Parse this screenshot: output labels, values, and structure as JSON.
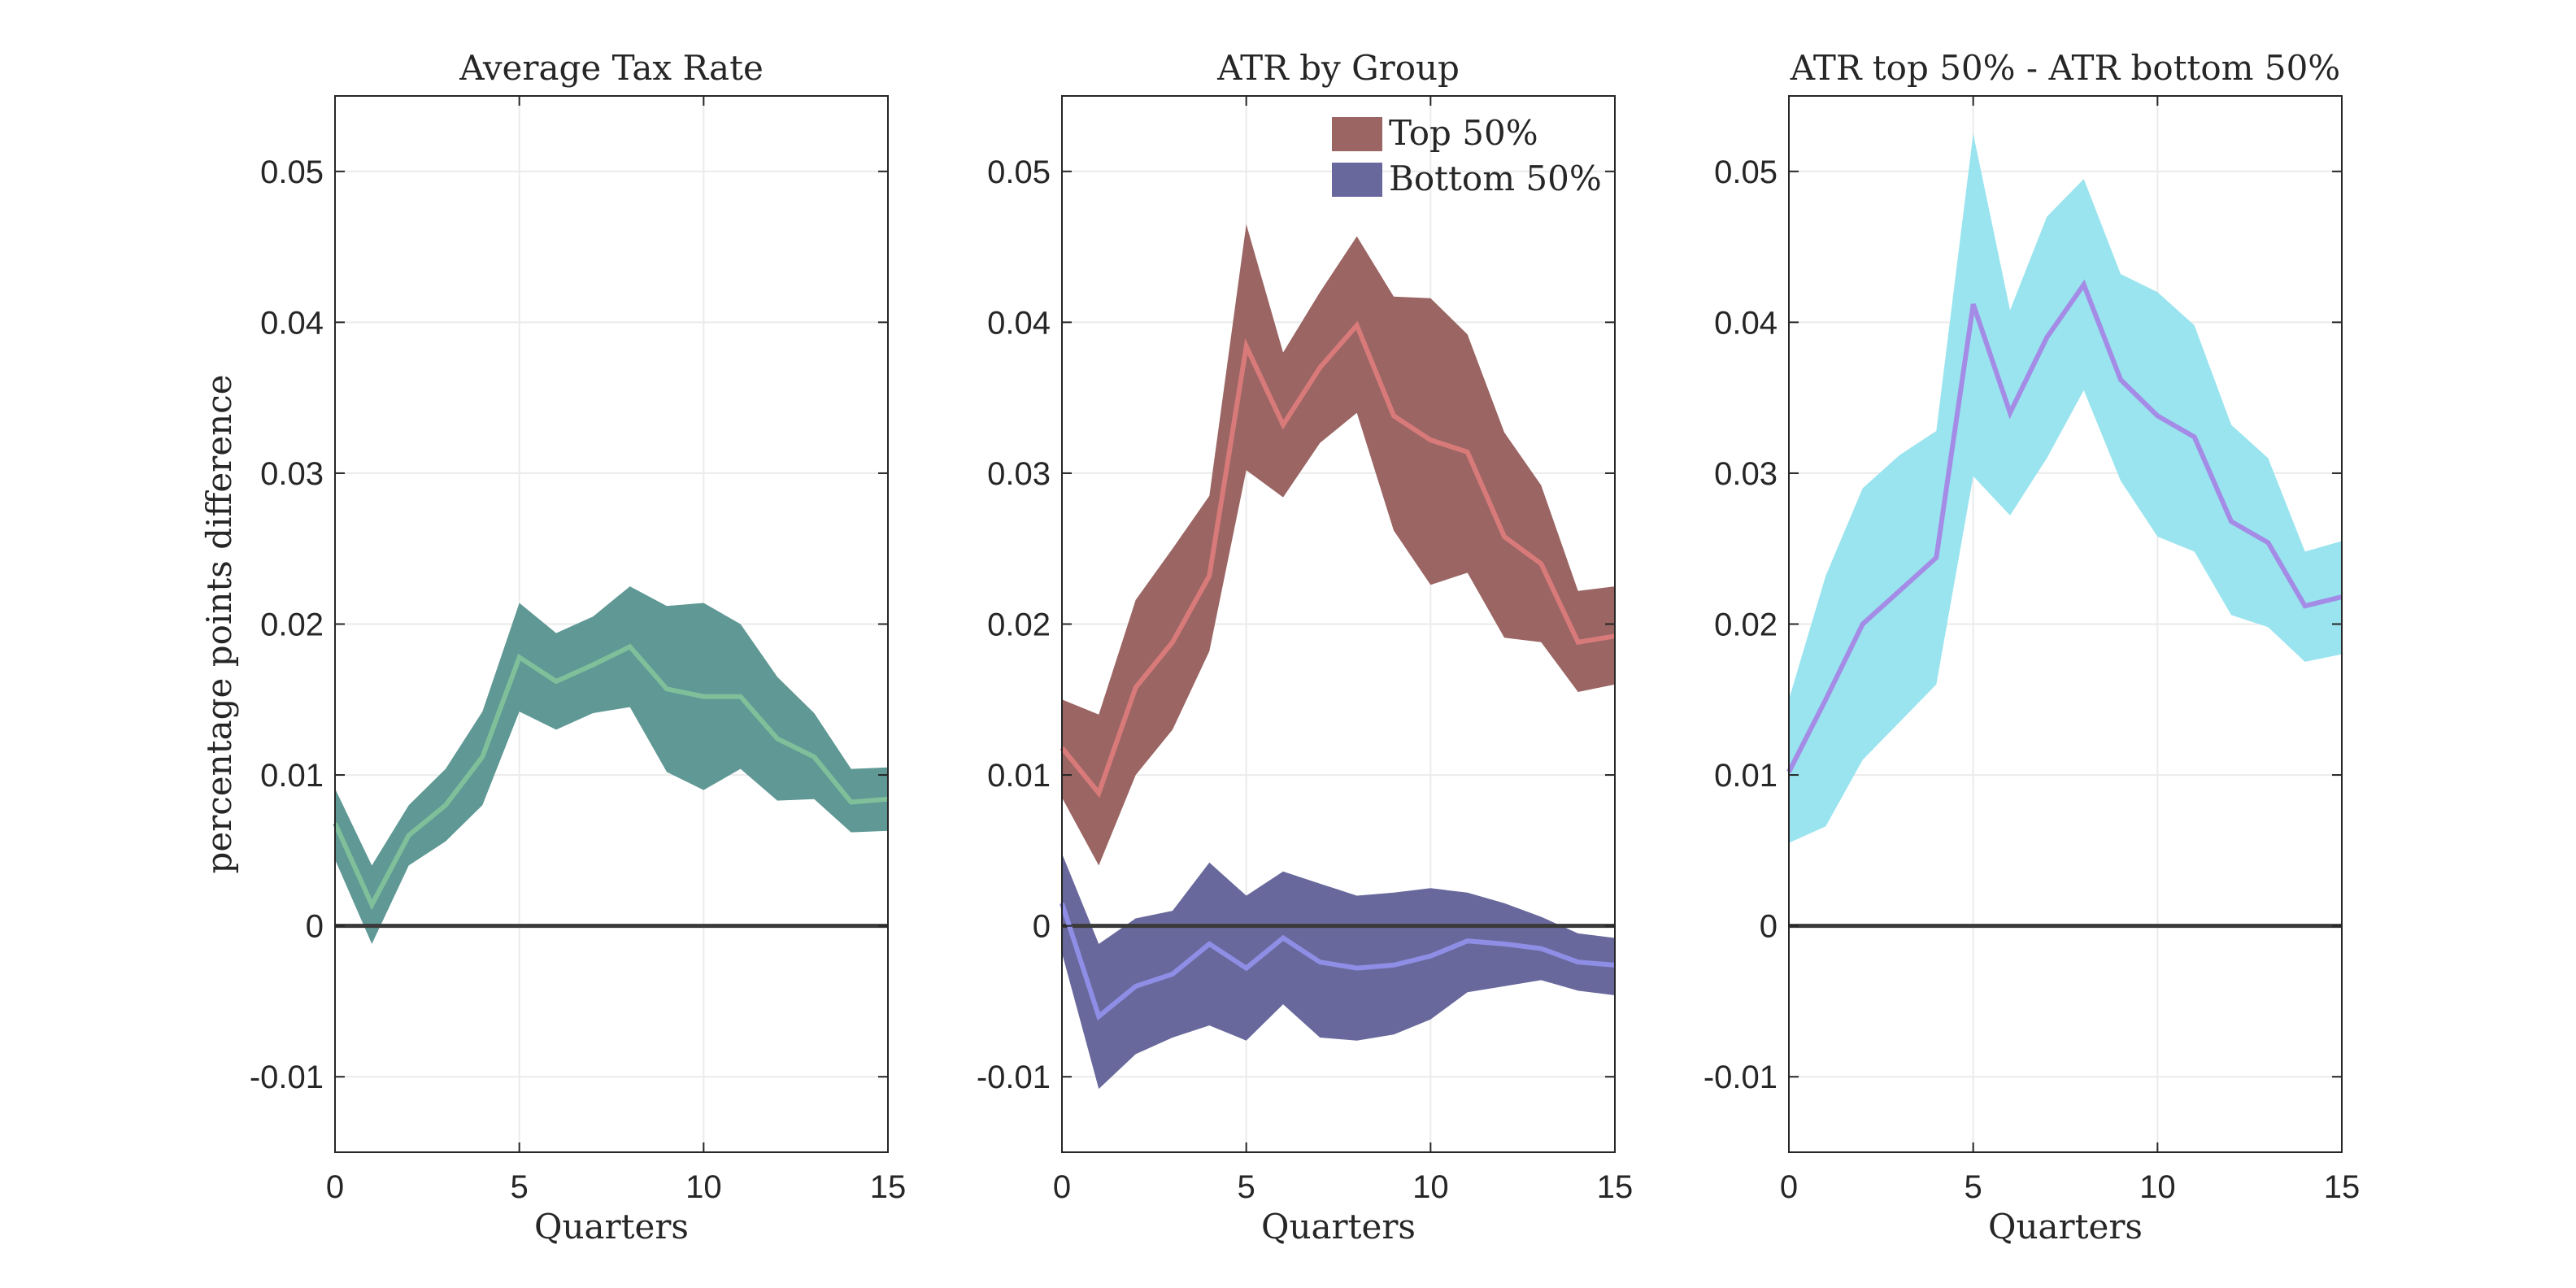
{
  "chart_data": [
    {
      "type": "area",
      "title": "Average Tax Rate",
      "xlabel": "Quarters",
      "ylabel": "percentage points difference",
      "xlim": [
        0,
        15
      ],
      "ylim": [
        -0.015,
        0.055
      ],
      "xticks": [
        "0",
        "5",
        "10",
        "15"
      ],
      "yticks": [
        "-0.01",
        "0",
        "0.01",
        "0.02",
        "0.03",
        "0.04",
        "0.05"
      ],
      "grid": true,
      "zero_line": true,
      "x": [
        0,
        1,
        2,
        3,
        4,
        5,
        6,
        7,
        8,
        9,
        10,
        11,
        12,
        13,
        14,
        15
      ],
      "series": [
        {
          "line_color": "#7fbf9a",
          "band_color": "#5f9894",
          "values": [
            0.0068,
            0.0014,
            0.006,
            0.008,
            0.0112,
            0.0178,
            0.0162,
            0.0173,
            0.0185,
            0.0157,
            0.0152,
            0.0152,
            0.0124,
            0.0112,
            0.0082,
            0.0084
          ],
          "upper": [
            0.0091,
            0.004,
            0.008,
            0.0104,
            0.0142,
            0.0214,
            0.0194,
            0.0205,
            0.0225,
            0.0212,
            0.0214,
            0.02,
            0.0165,
            0.0141,
            0.0104,
            0.0105
          ],
          "lower": [
            0.0044,
            -0.0012,
            0.004,
            0.0056,
            0.008,
            0.0142,
            0.013,
            0.0141,
            0.0145,
            0.0102,
            0.009,
            0.0104,
            0.0083,
            0.0084,
            0.0062,
            0.0063
          ]
        }
      ]
    },
    {
      "type": "area",
      "title": "ATR by Group",
      "xlabel": "Quarters",
      "xlim": [
        0,
        15
      ],
      "ylim": [
        -0.015,
        0.055
      ],
      "xticks": [
        "0",
        "5",
        "10",
        "15"
      ],
      "yticks": [
        "-0.01",
        "0",
        "0.01",
        "0.02",
        "0.03",
        "0.04",
        "0.05"
      ],
      "grid": true,
      "zero_line": true,
      "legend": "top-right",
      "x": [
        0,
        1,
        2,
        3,
        4,
        5,
        6,
        7,
        8,
        9,
        10,
        11,
        12,
        13,
        14,
        15
      ],
      "series": [
        {
          "name": "Top 50%",
          "line_color": "#d97a7a",
          "band_color": "#9a6563",
          "values": [
            0.0118,
            0.0088,
            0.0158,
            0.0188,
            0.0232,
            0.0384,
            0.0332,
            0.037,
            0.0398,
            0.0338,
            0.0322,
            0.0314,
            0.0258,
            0.024,
            0.0188,
            0.0192
          ],
          "upper": [
            0.015,
            0.014,
            0.0216,
            0.025,
            0.0285,
            0.0465,
            0.038,
            0.042,
            0.0457,
            0.0417,
            0.0416,
            0.0392,
            0.0327,
            0.0292,
            0.0222,
            0.0225
          ],
          "lower": [
            0.0085,
            0.004,
            0.01,
            0.013,
            0.0182,
            0.0302,
            0.0284,
            0.032,
            0.034,
            0.0262,
            0.0226,
            0.0234,
            0.0191,
            0.0188,
            0.0155,
            0.016
          ]
        },
        {
          "name": "Bottom 50%",
          "line_color": "#8f8ee6",
          "band_color": "#68689c",
          "values": [
            0.0015,
            -0.006,
            -0.004,
            -0.0032,
            -0.0012,
            -0.0028,
            -0.0008,
            -0.0024,
            -0.0028,
            -0.0026,
            -0.002,
            -0.001,
            -0.0012,
            -0.0015,
            -0.0024,
            -0.0026
          ],
          "upper": [
            0.0048,
            -0.0012,
            0.0005,
            0.001,
            0.0042,
            0.002,
            0.0036,
            0.0028,
            0.002,
            0.0022,
            0.0025,
            0.0022,
            0.0015,
            0.0006,
            -0.0005,
            -0.0008
          ],
          "lower": [
            -0.0018,
            -0.0108,
            -0.0085,
            -0.0074,
            -0.0066,
            -0.0076,
            -0.0052,
            -0.0074,
            -0.0076,
            -0.0072,
            -0.0062,
            -0.0044,
            -0.004,
            -0.0036,
            -0.0043,
            -0.0046
          ]
        }
      ]
    },
    {
      "type": "area",
      "title": "ATR top 50% - ATR bottom 50%",
      "xlabel": "Quarters",
      "xlim": [
        0,
        15
      ],
      "ylim": [
        -0.015,
        0.055
      ],
      "xticks": [
        "0",
        "5",
        "10",
        "15"
      ],
      "yticks": [
        "-0.01",
        "0",
        "0.01",
        "0.02",
        "0.03",
        "0.04",
        "0.05"
      ],
      "grid": true,
      "zero_line": true,
      "x": [
        0,
        1,
        2,
        3,
        4,
        5,
        6,
        7,
        8,
        9,
        10,
        11,
        12,
        13,
        14,
        15
      ],
      "series": [
        {
          "line_color": "#a48ce6",
          "band_color": "#99e4ef",
          "values": [
            0.0102,
            0.015,
            0.02,
            0.0222,
            0.0244,
            0.0412,
            0.034,
            0.039,
            0.0425,
            0.0362,
            0.0338,
            0.0324,
            0.0268,
            0.0254,
            0.0212,
            0.0218
          ],
          "upper": [
            0.015,
            0.0232,
            0.029,
            0.0312,
            0.0328,
            0.0525,
            0.0408,
            0.047,
            0.0495,
            0.0432,
            0.042,
            0.0398,
            0.0332,
            0.031,
            0.0248,
            0.0255
          ],
          "lower": [
            0.0055,
            0.0066,
            0.011,
            0.0135,
            0.016,
            0.0298,
            0.0272,
            0.031,
            0.0355,
            0.0295,
            0.0258,
            0.0248,
            0.0206,
            0.0198,
            0.0175,
            0.018
          ]
        }
      ]
    }
  ]
}
